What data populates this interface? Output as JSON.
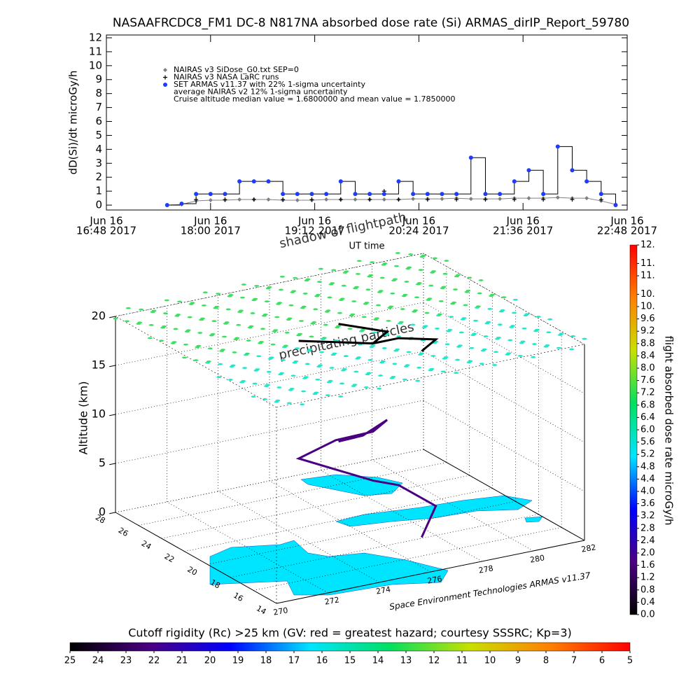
{
  "chart_data": [
    {
      "type": "line",
      "title": "NASAAFRCDC8_FM1 DC-8   N817NA absorbed dose rate (Si) ARMAS_dirIP_Report_59780",
      "ylabel": "dD(Si)/dt microGy/h",
      "xlabel": "UT time",
      "xlim": [
        "2017-06-16T16:48",
        "2017-06-16T22:48"
      ],
      "xticks": [
        {
          "value": "2017-06-16T16:48",
          "label": [
            "Jun 16",
            "16:48 2017"
          ]
        },
        {
          "value": "2017-06-16T18:00",
          "label": [
            "Jun 16",
            "18:00 2017"
          ]
        },
        {
          "value": "2017-06-16T19:12",
          "label": [
            "Jun 16",
            "19:12 2017"
          ]
        },
        {
          "value": "2017-06-16T20:24",
          "label": [
            "Jun 16",
            "20:24 2017"
          ]
        },
        {
          "value": "2017-06-16T21:36",
          "label": [
            "Jun 16",
            "21:36 2017"
          ]
        },
        {
          "value": "2017-06-16T22:48",
          "label": [
            "Jun 16",
            "22:48 2017"
          ]
        }
      ],
      "ylim": [
        -0.35,
        12.2
      ],
      "yticks": [
        0,
        1,
        2,
        3,
        4,
        5,
        6,
        7,
        8,
        9,
        10,
        11,
        12
      ],
      "x": [
        "2017-06-16T17:30",
        "2017-06-16T17:40",
        "2017-06-16T17:50",
        "2017-06-16T18:00",
        "2017-06-16T18:10",
        "2017-06-16T18:20",
        "2017-06-16T18:30",
        "2017-06-16T18:40",
        "2017-06-16T18:50",
        "2017-06-16T19:00",
        "2017-06-16T19:10",
        "2017-06-16T19:20",
        "2017-06-16T19:30",
        "2017-06-16T19:40",
        "2017-06-16T19:50",
        "2017-06-16T20:00",
        "2017-06-16T20:10",
        "2017-06-16T20:20",
        "2017-06-16T20:30",
        "2017-06-16T20:40",
        "2017-06-16T20:50",
        "2017-06-16T21:00",
        "2017-06-16T21:10",
        "2017-06-16T21:20",
        "2017-06-16T21:30",
        "2017-06-16T21:40",
        "2017-06-16T21:50",
        "2017-06-16T22:00",
        "2017-06-16T22:10",
        "2017-06-16T22:20",
        "2017-06-16T22:30",
        "2017-06-16T22:40"
      ],
      "series": [
        {
          "name": "NAIRAS v3 SiDose_G0.txt SEP=0",
          "color": "#808080",
          "marker": "diamond",
          "values": [
            0,
            0.05,
            0.3,
            0.35,
            0.35,
            0.4,
            0.4,
            0.4,
            0.35,
            0.35,
            0.35,
            0.4,
            0.4,
            0.4,
            0.4,
            0.4,
            0.4,
            0.45,
            0.45,
            0.45,
            0.5,
            0.45,
            0.45,
            0.45,
            0.5,
            0.5,
            0.5,
            0.55,
            0.5,
            0.5,
            0.3,
            0.05
          ]
        },
        {
          "name": "NAIRAS v3 NASA LaRC runs",
          "color": "#000000",
          "marker": "plus",
          "values": [
            null,
            null,
            0.4,
            null,
            0.4,
            null,
            0.4,
            null,
            0.4,
            null,
            0.4,
            null,
            0.4,
            null,
            0.4,
            1.0,
            0.4,
            null,
            0.4,
            null,
            0.4,
            null,
            0.4,
            null,
            0.4,
            null,
            0.4,
            null,
            0.4,
            null,
            0.4,
            null
          ]
        },
        {
          "name": "SET ARMAS v11.37 with 22% 1-sigma uncertainty",
          "color": "#1e3cff",
          "line_color": "#000000",
          "marker": "circle",
          "values": [
            0,
            0.1,
            0.8,
            0.8,
            0.8,
            1.7,
            1.7,
            1.7,
            0.8,
            0.8,
            0.8,
            0.8,
            1.7,
            0.8,
            0.8,
            0.8,
            1.7,
            0.8,
            0.8,
            0.8,
            0.8,
            3.4,
            0.8,
            0.8,
            1.7,
            2.5,
            0.8,
            4.2,
            2.5,
            1.7,
            0.8,
            0
          ]
        }
      ],
      "annotations": [
        "average NAIRAS v2 12% 1-sigma uncertainty",
        "Cruise altitude median value = 1.6800000 and mean value = 1.7850000"
      ]
    },
    {
      "type": "path3d",
      "zlabel": "Altitude (km)",
      "xlim": [
        270,
        282
      ],
      "xticks": [
        270,
        272,
        274,
        276,
        278,
        280,
        282
      ],
      "ylim": [
        14,
        28
      ],
      "yticks": [
        14,
        16,
        18,
        20,
        22,
        24,
        26,
        28
      ],
      "zlim": [
        0,
        20
      ],
      "zticks": [
        0,
        5,
        10,
        15,
        20
      ],
      "annotations": [
        "shadow of flightpath",
        "precipitating particles"
      ],
      "credit": "Space Environment Technologies ARMAS v11.37",
      "series": [
        {
          "color": "#4b0082",
          "x": [
            276,
            276.5,
            277,
            276,
            275,
            274,
            275,
            276,
            277,
            278,
            277
          ],
          "y": [
            22,
            21,
            20,
            19,
            20,
            21,
            20,
            19,
            19,
            18,
            17
          ],
          "z": [
            8,
            9,
            11,
            11,
            10,
            8,
            7,
            6,
            5,
            3,
            1
          ]
        }
      ]
    },
    {
      "type": "colorbar",
      "orientation": "vertical",
      "label": "flight absorbed dose rate microGy/h",
      "lim": [
        0,
        12
      ],
      "colors": [
        "#000000",
        "#4b0082",
        "#0000ff",
        "#00e5ff",
        "#00e060",
        "#c8e000",
        "#ff8000",
        "#ff0000"
      ],
      "ticks": [
        {
          "value": 0,
          "label": "0.0"
        },
        0.4,
        0.8,
        1.2,
        1.6,
        {
          "value": 2,
          "label": "2.0"
        },
        2.4,
        2.8,
        3.2,
        3.6,
        {
          "value": 4,
          "label": "4.0"
        },
        4.4,
        4.8,
        5.2,
        5.6,
        {
          "value": 6,
          "label": "6.0"
        },
        6.4,
        6.8,
        7.2,
        7.6,
        {
          "value": 8,
          "label": "8.0"
        },
        8.4,
        8.8,
        9.2,
        9.6,
        {
          "value": 10,
          "label": "10."
        },
        {
          "value": 10.4,
          "label": "10."
        },
        {
          "value": 11,
          "label": "11."
        },
        {
          "value": 11.4,
          "label": "11."
        },
        {
          "value": 12,
          "label": "12."
        }
      ]
    },
    {
      "type": "colorbar",
      "orientation": "horizontal",
      "label": "Cutoff rigidity (Rc) >25 km (GV: red = greatest hazard; courtesy SSSRC; Kp=3)",
      "lim": [
        25,
        5
      ],
      "colors": [
        "#000000",
        "#4b0082",
        "#0000ff",
        "#00e5ff",
        "#00e060",
        "#c8e000",
        "#ff8000",
        "#ff0000"
      ],
      "ticks": [
        25,
        24,
        23,
        22,
        21,
        20,
        19,
        18,
        17,
        16,
        15,
        14,
        13,
        12,
        11,
        10,
        9,
        8,
        7,
        6,
        5
      ]
    }
  ]
}
